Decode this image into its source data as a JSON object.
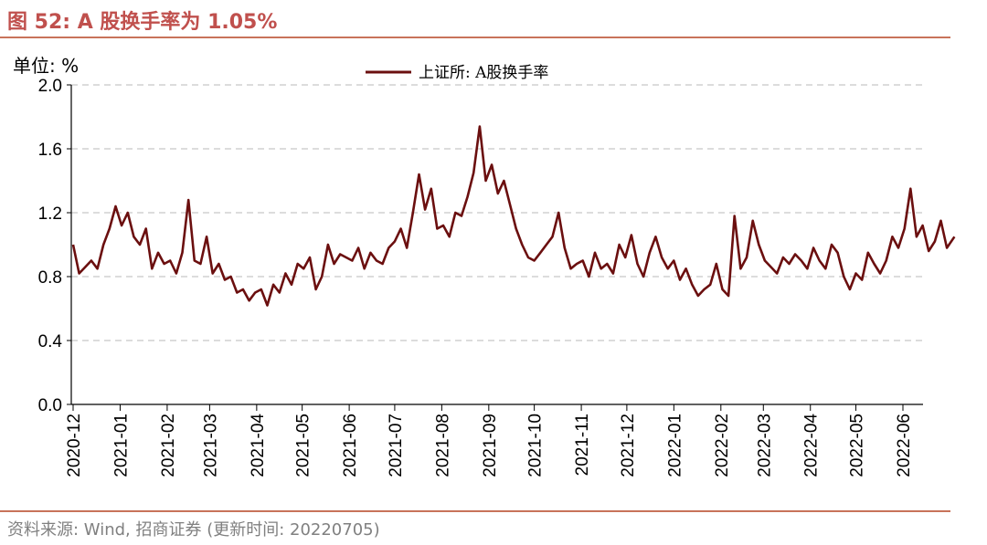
{
  "figure": {
    "title": "图 52:  A 股换手率为 1.05%",
    "unit_label": "单位:  %",
    "source": "资料来源: Wind, 招商证券 (更新时间: 20220705)",
    "accent_color": "#c0504d",
    "line_color": "#6b0f0f",
    "grid_color": "#c8c8c8"
  },
  "chart_data": {
    "type": "line",
    "title": "",
    "xlabel": "",
    "ylabel": "%",
    "ylim": [
      0.0,
      2.0
    ],
    "yticks": [
      "0.0",
      "0.4",
      "0.8",
      "1.2",
      "1.6",
      "2.0"
    ],
    "yticks_values": [
      0.0,
      0.4,
      0.8,
      1.2,
      1.6,
      2.0
    ],
    "xticks": [
      "2020-12",
      "2021-01",
      "2021-02",
      "2021-03",
      "2021-04",
      "2021-05",
      "2021-06",
      "2021-07",
      "2021-08",
      "2021-09",
      "2021-10",
      "2021-11",
      "2021-12",
      "2022-01",
      "2022-02",
      "2022-03",
      "2022-04",
      "2022-05",
      "2022-06"
    ],
    "grid": "horizontal dashed",
    "legend_position": "top-center",
    "series": [
      {
        "name": "上证所: A股换手率",
        "color": "#6b0f0f",
        "x": [
          "2020-12-01",
          "2020-12-05",
          "2020-12-09",
          "2020-12-13",
          "2020-12-17",
          "2020-12-21",
          "2020-12-25",
          "2020-12-29",
          "2021-01-02",
          "2021-01-06",
          "2021-01-10",
          "2021-01-14",
          "2021-01-18",
          "2021-01-22",
          "2021-01-26",
          "2021-01-30",
          "2021-02-03",
          "2021-02-07",
          "2021-02-11",
          "2021-02-15",
          "2021-02-19",
          "2021-02-23",
          "2021-02-27",
          "2021-03-03",
          "2021-03-07",
          "2021-03-11",
          "2021-03-15",
          "2021-03-19",
          "2021-03-23",
          "2021-03-27",
          "2021-03-31",
          "2021-04-04",
          "2021-04-08",
          "2021-04-12",
          "2021-04-16",
          "2021-04-20",
          "2021-04-24",
          "2021-04-28",
          "2021-05-02",
          "2021-05-06",
          "2021-05-10",
          "2021-05-14",
          "2021-05-18",
          "2021-05-22",
          "2021-05-26",
          "2021-05-30",
          "2021-06-03",
          "2021-06-07",
          "2021-06-11",
          "2021-06-15",
          "2021-06-19",
          "2021-06-23",
          "2021-06-27",
          "2021-07-01",
          "2021-07-05",
          "2021-07-09",
          "2021-07-13",
          "2021-07-17",
          "2021-07-21",
          "2021-07-25",
          "2021-07-29",
          "2021-08-02",
          "2021-08-06",
          "2021-08-10",
          "2021-08-14",
          "2021-08-18",
          "2021-08-22",
          "2021-08-26",
          "2021-08-30",
          "2021-09-03",
          "2021-09-07",
          "2021-09-11",
          "2021-09-15",
          "2021-09-19",
          "2021-09-23",
          "2021-09-27",
          "2021-10-01",
          "2021-10-05",
          "2021-10-09",
          "2021-10-13",
          "2021-10-17",
          "2021-10-21",
          "2021-10-25",
          "2021-10-29",
          "2021-11-02",
          "2021-11-06",
          "2021-11-10",
          "2021-11-14",
          "2021-11-18",
          "2021-11-22",
          "2021-11-26",
          "2021-11-30",
          "2021-12-04",
          "2021-12-08",
          "2021-12-12",
          "2021-12-16",
          "2021-12-20",
          "2021-12-24",
          "2021-12-28",
          "2022-01-01",
          "2022-01-05",
          "2022-01-09",
          "2022-01-13",
          "2022-01-17",
          "2022-01-21",
          "2022-01-25",
          "2022-01-29",
          "2022-02-02",
          "2022-02-06",
          "2022-02-10",
          "2022-02-14",
          "2022-02-18",
          "2022-02-22",
          "2022-02-26",
          "2022-03-02",
          "2022-03-06",
          "2022-03-10",
          "2022-03-14",
          "2022-03-18",
          "2022-03-22",
          "2022-03-26",
          "2022-03-30",
          "2022-04-03",
          "2022-04-07",
          "2022-04-11",
          "2022-04-15",
          "2022-04-19",
          "2022-04-23",
          "2022-04-27",
          "2022-05-01",
          "2022-05-05",
          "2022-05-09",
          "2022-05-13",
          "2022-05-17",
          "2022-05-21",
          "2022-05-25",
          "2022-05-29",
          "2022-06-02",
          "2022-06-06",
          "2022-06-10",
          "2022-06-14",
          "2022-06-18",
          "2022-06-22",
          "2022-06-26",
          "2022-06-30",
          "2022-07-05"
        ],
        "values": [
          1.0,
          0.82,
          0.86,
          0.9,
          0.85,
          1.0,
          1.1,
          1.24,
          1.12,
          1.2,
          1.05,
          1.0,
          1.1,
          0.85,
          0.95,
          0.88,
          0.9,
          0.82,
          0.95,
          1.28,
          0.9,
          0.88,
          1.05,
          0.82,
          0.88,
          0.78,
          0.8,
          0.7,
          0.72,
          0.65,
          0.7,
          0.72,
          0.62,
          0.75,
          0.7,
          0.82,
          0.75,
          0.88,
          0.85,
          0.92,
          0.72,
          0.8,
          1.0,
          0.88,
          0.94,
          0.92,
          0.9,
          0.98,
          0.85,
          0.95,
          0.9,
          0.88,
          0.98,
          1.02,
          1.1,
          0.98,
          1.2,
          1.44,
          1.22,
          1.35,
          1.1,
          1.12,
          1.05,
          1.2,
          1.18,
          1.3,
          1.45,
          1.74,
          1.4,
          1.5,
          1.32,
          1.4,
          1.25,
          1.1,
          1.0,
          0.92,
          0.9,
          0.95,
          1.0,
          1.05,
          1.2,
          0.98,
          0.85,
          0.88,
          0.9,
          0.8,
          0.95,
          0.85,
          0.88,
          0.82,
          1.0,
          0.92,
          1.06,
          0.88,
          0.8,
          0.95,
          1.05,
          0.92,
          0.85,
          0.9,
          0.78,
          0.85,
          0.75,
          0.68,
          0.72,
          0.75,
          0.88,
          0.72,
          0.68,
          1.18,
          0.85,
          0.92,
          1.15,
          1.0,
          0.9,
          0.86,
          0.82,
          0.92,
          0.88,
          0.94,
          0.9,
          0.85,
          0.98,
          0.9,
          0.85,
          1.0,
          0.95,
          0.8,
          0.72,
          0.82,
          0.78,
          0.95,
          0.88,
          0.82,
          0.9,
          1.05,
          0.98,
          1.1,
          1.35,
          1.05,
          1.12,
          0.96,
          1.02,
          1.15,
          0.98,
          1.05
        ]
      }
    ]
  }
}
